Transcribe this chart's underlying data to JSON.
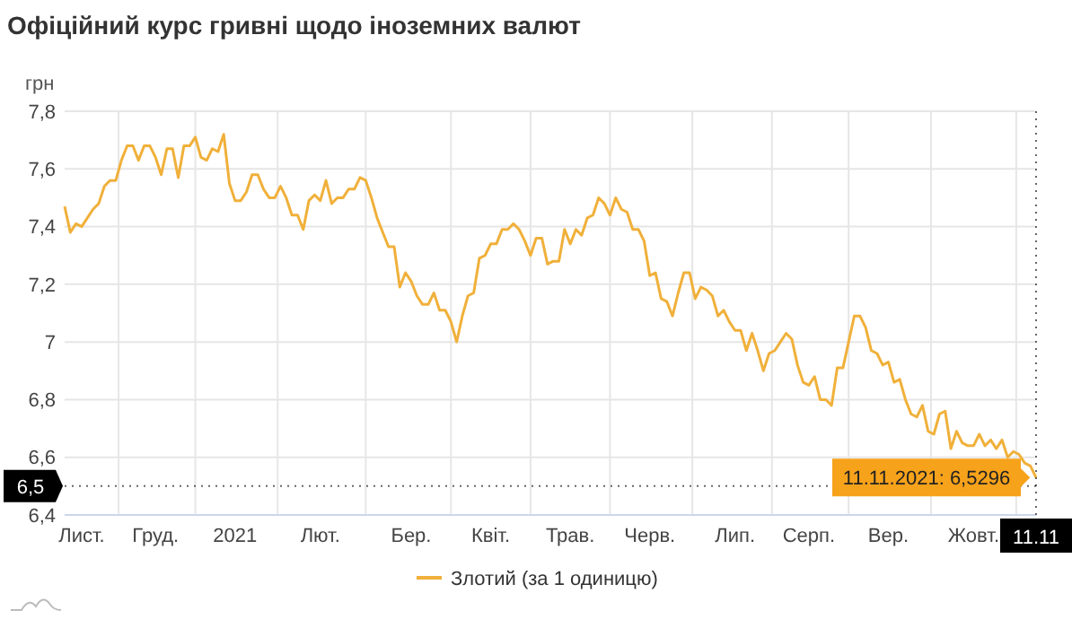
{
  "chart_data": {
    "type": "line",
    "title": "Офіційний курс гривні щодо іноземних валют",
    "ylabel": "грн",
    "categories": [
      null,
      null,
      null,
      "Лист.",
      null,
      null,
      null,
      null,
      null,
      null,
      null,
      null,
      null,
      null,
      null,
      null,
      "Груд.",
      null,
      null,
      null,
      null,
      null,
      null,
      null,
      null,
      null,
      null,
      null,
      null,
      null,
      "2021",
      null,
      null,
      null,
      null,
      null,
      null,
      null,
      null,
      null,
      null,
      null,
      null,
      null,
      null,
      "Лют.",
      null,
      null,
      null,
      null,
      null,
      null,
      null,
      null,
      null,
      null,
      null,
      null,
      null,
      null,
      null,
      "Бер.",
      null,
      null,
      null,
      null,
      null,
      null,
      null,
      null,
      null,
      null,
      null,
      null,
      null,
      "Квіт.",
      null,
      null,
      null,
      null,
      null,
      null,
      null,
      null,
      null,
      null,
      null,
      null,
      null,
      "Трав.",
      null,
      null,
      null,
      null,
      null,
      null,
      null,
      null,
      null,
      null,
      null,
      null,
      null,
      "Черв.",
      null,
      null,
      null,
      null,
      null,
      null,
      null,
      null,
      null,
      null,
      null,
      null,
      null,
      null,
      "Лип.",
      null,
      null,
      null,
      null,
      null,
      null,
      null,
      null,
      null,
      null,
      null,
      null,
      "Серп.",
      null,
      null,
      null,
      null,
      null,
      null,
      null,
      null,
      null,
      null,
      null,
      null,
      null,
      "Вер.",
      null,
      null,
      null,
      null,
      null,
      null,
      null,
      null,
      null,
      null,
      null,
      null,
      null,
      null,
      "Жовт.",
      null,
      null,
      null,
      null,
      null,
      null,
      null,
      null,
      null,
      null,
      "11.11"
    ],
    "ylim": [
      6.4,
      7.8
    ],
    "yticks": [
      {
        "value": 6.4,
        "label": "6,4"
      },
      {
        "value": 6.6,
        "label": "6,6"
      },
      {
        "value": 6.8,
        "label": "6,8"
      },
      7,
      {
        "value": 7.2,
        "label": "7,2"
      },
      {
        "value": 7.4,
        "label": "7,4"
      },
      {
        "value": 7.6,
        "label": "7,6"
      },
      {
        "value": 7.8,
        "label": "7,8"
      }
    ],
    "grid": true,
    "legend": "bottom",
    "marker": "none",
    "line_style": "solid",
    "ref_lines": [
      {
        "axis": "y",
        "value": 6.5,
        "label": "6,5",
        "line_style": "dotted",
        "color": "#000000"
      },
      {
        "axis": "x",
        "value": "11.11",
        "line_style": "dotted",
        "color": "#000000"
      }
    ],
    "annotations": [
      {
        "text": "11.11.2021: 6,5296",
        "x": "11.11",
        "y": 6.5296
      }
    ],
    "series": [
      {
        "name": "Злотий (за 1 одиницю)",
        "color": "#f0b03a",
        "values": [
          7.47,
          7.38,
          7.41,
          7.4,
          7.43,
          7.46,
          7.48,
          7.54,
          7.56,
          7.56,
          7.63,
          7.68,
          7.68,
          7.63,
          7.68,
          7.68,
          7.64,
          7.58,
          7.67,
          7.67,
          7.57,
          7.68,
          7.68,
          7.71,
          7.64,
          7.63,
          7.67,
          7.66,
          7.72,
          7.55,
          7.49,
          7.49,
          7.52,
          7.58,
          7.58,
          7.53,
          7.5,
          7.5,
          7.54,
          7.5,
          7.44,
          7.44,
          7.39,
          7.49,
          7.51,
          7.49,
          7.56,
          7.48,
          7.5,
          7.5,
          7.53,
          7.53,
          7.57,
          7.56,
          7.5,
          7.43,
          7.38,
          7.33,
          7.33,
          7.19,
          7.24,
          7.21,
          7.16,
          7.13,
          7.13,
          7.17,
          7.11,
          7.11,
          7.07,
          7.0,
          7.09,
          7.16,
          7.17,
          7.29,
          7.3,
          7.34,
          7.34,
          7.39,
          7.39,
          7.41,
          7.39,
          7.35,
          7.3,
          7.36,
          7.36,
          7.27,
          7.28,
          7.28,
          7.39,
          7.34,
          7.39,
          7.37,
          7.43,
          7.44,
          7.5,
          7.48,
          7.44,
          7.5,
          7.46,
          7.45,
          7.39,
          7.39,
          7.35,
          7.23,
          7.24,
          7.15,
          7.14,
          7.09,
          7.17,
          7.24,
          7.24,
          7.15,
          7.19,
          7.18,
          7.16,
          7.09,
          7.11,
          7.07,
          7.04,
          7.04,
          6.97,
          7.03,
          6.97,
          6.9,
          6.96,
          6.97,
          7.0,
          7.03,
          7.01,
          6.92,
          6.86,
          6.85,
          6.88,
          6.8,
          6.8,
          6.78,
          6.91,
          6.91,
          7.0,
          7.09,
          7.09,
          7.05,
          6.97,
          6.96,
          6.92,
          6.93,
          6.86,
          6.87,
          6.8,
          6.75,
          6.74,
          6.78,
          6.69,
          6.68,
          6.75,
          6.76,
          6.63,
          6.69,
          6.65,
          6.64,
          6.64,
          6.68,
          6.64,
          6.66,
          6.63,
          6.66,
          6.6,
          6.62,
          6.61,
          6.58,
          6.57,
          6.5296
        ]
      }
    ]
  }
}
